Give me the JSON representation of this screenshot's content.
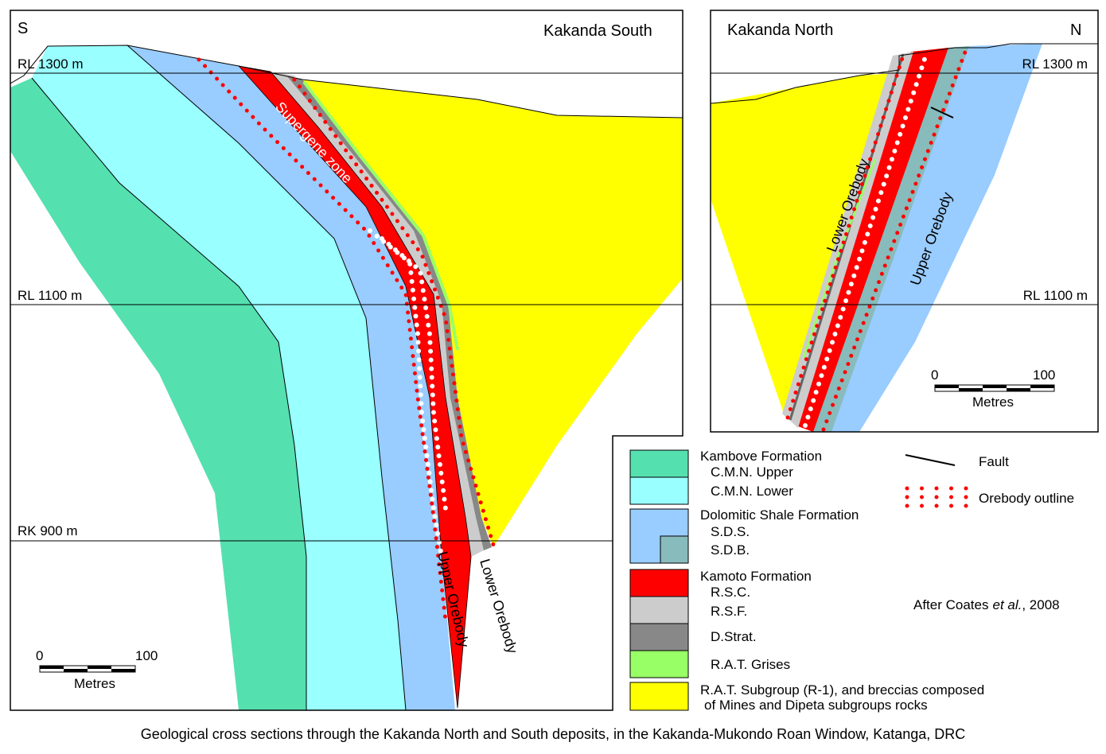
{
  "south": {
    "direction": "S",
    "title": "Kakanda South",
    "levels": [
      "RL 1300 m",
      "RL 1100 m",
      "RK 900 m"
    ],
    "labels": {
      "supergene": "Supergene zone",
      "upper": "Upper Orebody",
      "lower": "Lower Orebody"
    },
    "scale": {
      "start": "0",
      "end": "100",
      "unit": "Metres"
    }
  },
  "north": {
    "direction": "N",
    "title": "Kakanda North",
    "levels": [
      "RL 1300 m",
      "RL 1100 m"
    ],
    "labels": {
      "lower": "Lower Orebody",
      "upper": "Upper Orebody"
    },
    "scale": {
      "start": "0",
      "end": "100",
      "unit": "Metres"
    }
  },
  "legend": {
    "kambove": {
      "title": "Kambove Formation",
      "upper": "C.M.N. Upper",
      "lower": "C.M.N. Lower"
    },
    "dolomitic": {
      "title": "Dolomitic Shale Formation",
      "sds": "S.D.S.",
      "sdb": "S.D.B."
    },
    "kamoto": {
      "title": "Kamoto Formation",
      "rsc": "R.S.C.",
      "rsf": "R.S.F.",
      "dstrat": "D.Strat.",
      "grises": "R.A.T. Grises"
    },
    "rat": {
      "line1": "R.A.T. Subgroup (R-1), and breccias composed",
      "line2": "of Mines and Dipeta subgroups rocks"
    },
    "fault": "Fault",
    "orebody": "Orebody outline"
  },
  "credit": {
    "prefix": "After Coates",
    "italic": "et al.",
    "suffix": ", 2008"
  },
  "caption": "Geological cross sections through the Kakanda North and South deposits, in the Kakanda-Mukondo Roan Window, Katanga, DRC"
}
